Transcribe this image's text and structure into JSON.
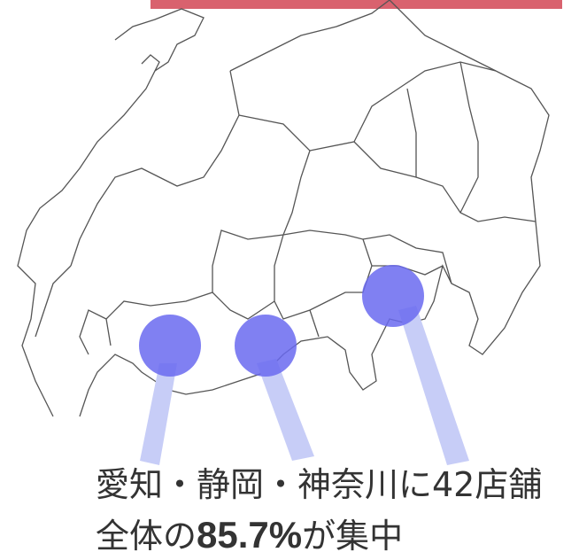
{
  "caption": {
    "line1": "愛知・静岡・神奈川に42店舗",
    "line2": {
      "before": "全体の",
      "emphasis": "85.7%",
      "after": "が集中"
    }
  }
}
